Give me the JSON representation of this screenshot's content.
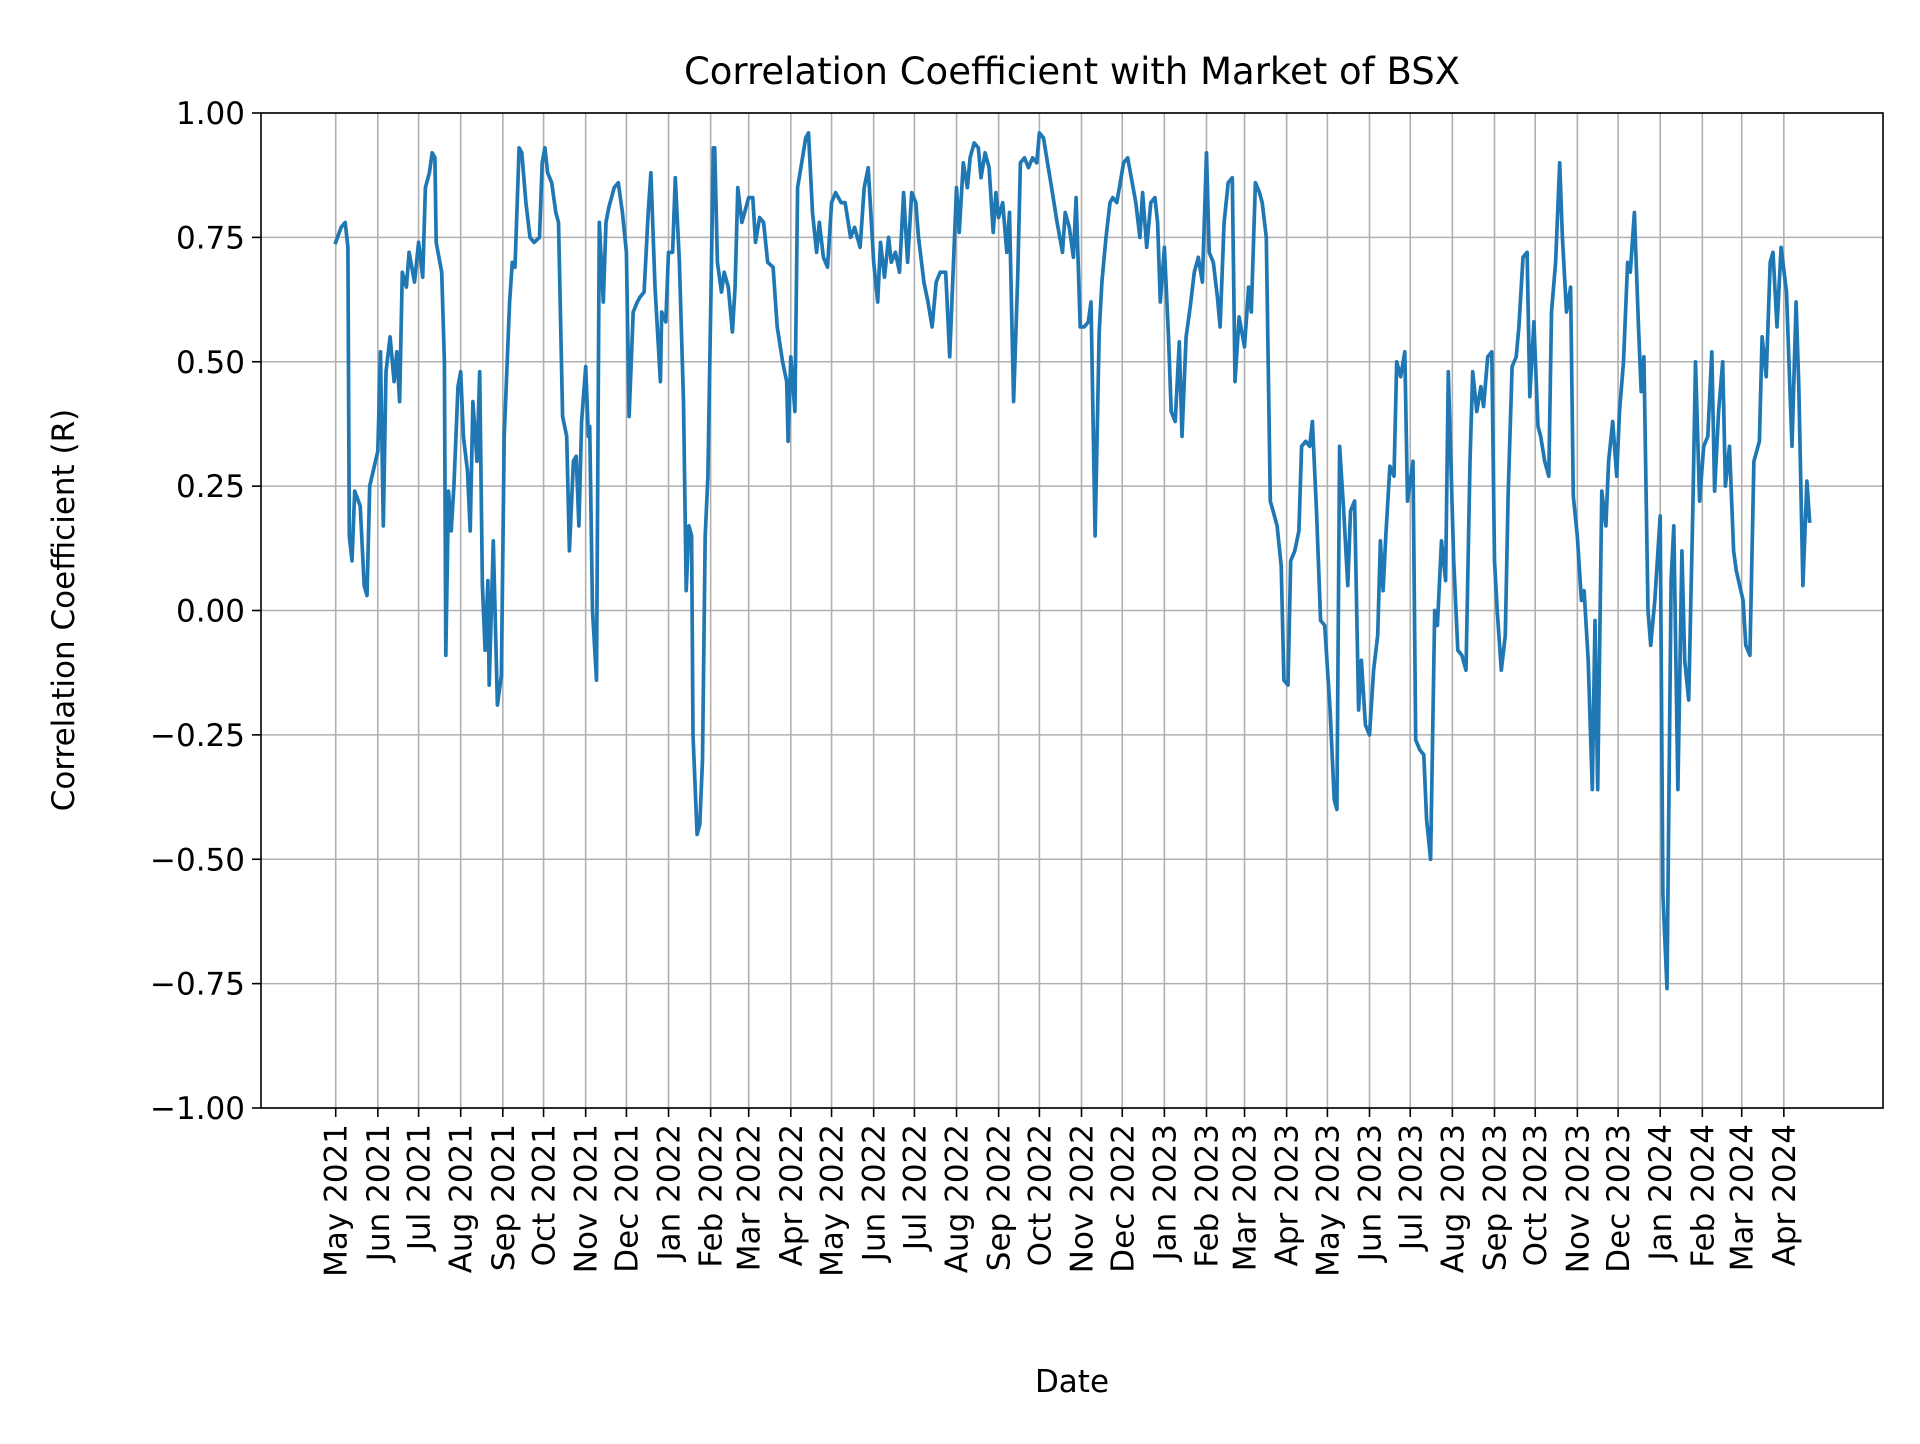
{
  "chart_data": {
    "type": "line",
    "title": "Correlation Coefficient with Market of BSX",
    "xlabel": "Date",
    "ylabel": "Correlation Coefficient (R)",
    "xlim": [
      "2021-03-07",
      "2024-06-13"
    ],
    "ylim": [
      -1.0,
      1.0
    ],
    "grid": true,
    "line_color": "#1f77b4",
    "grid_color": "#b0b0b0",
    "y_ticks": [
      -1.0,
      -0.75,
      -0.5,
      -0.25,
      0.0,
      0.25,
      0.5,
      0.75,
      1.0
    ],
    "y_tick_labels": [
      "−1.00",
      "−0.75",
      "−0.50",
      "−0.25",
      "0.00",
      "0.25",
      "0.50",
      "0.75",
      "1.00"
    ],
    "x_ticks": [
      "2021-05-01",
      "2021-06-01",
      "2021-07-01",
      "2021-08-01",
      "2021-09-01",
      "2021-10-01",
      "2021-11-01",
      "2021-12-01",
      "2022-01-01",
      "2022-02-01",
      "2022-03-01",
      "2022-04-01",
      "2022-05-01",
      "2022-06-01",
      "2022-07-01",
      "2022-08-01",
      "2022-09-01",
      "2022-10-01",
      "2022-11-01",
      "2022-12-01",
      "2023-01-01",
      "2023-02-01",
      "2023-03-01",
      "2023-04-01",
      "2023-05-01",
      "2023-06-01",
      "2023-07-01",
      "2023-08-01",
      "2023-09-01",
      "2023-10-01",
      "2023-11-01",
      "2023-12-01",
      "2024-01-01",
      "2024-02-01",
      "2024-03-01",
      "2024-04-01"
    ],
    "x_tick_labels": [
      "May 2021",
      "Jun 2021",
      "Jul 2021",
      "Aug 2021",
      "Sep 2021",
      "Oct 2021",
      "Nov 2021",
      "Dec 2021",
      "Jan 2022",
      "Feb 2022",
      "Mar 2022",
      "Apr 2022",
      "May 2022",
      "Jun 2022",
      "Jul 2022",
      "Aug 2022",
      "Sep 2022",
      "Oct 2022",
      "Nov 2022",
      "Dec 2022",
      "Jan 2023",
      "Feb 2023",
      "Mar 2023",
      "Apr 2023",
      "May 2023",
      "Jun 2023",
      "Jul 2023",
      "Aug 2023",
      "Sep 2023",
      "Oct 2023",
      "Nov 2023",
      "Dec 2023",
      "Jan 2024",
      "Feb 2024",
      "Mar 2024",
      "Apr 2024"
    ],
    "series": [
      {
        "x": [
          "2021-05-01",
          "2021-05-05",
          "2021-05-08",
          "2021-05-10",
          "2021-05-11",
          "2021-05-13",
          "2021-05-15",
          "2021-05-19",
          "2021-05-22",
          "2021-05-24",
          "2021-05-26",
          "2021-06-01",
          "2021-06-03",
          "2021-06-05",
          "2021-06-07",
          "2021-06-10",
          "2021-06-13",
          "2021-06-15",
          "2021-06-17",
          "2021-06-19",
          "2021-06-22",
          "2021-06-24",
          "2021-06-28",
          "2021-07-01",
          "2021-07-04",
          "2021-07-06",
          "2021-07-09",
          "2021-07-11",
          "2021-07-13",
          "2021-07-14",
          "2021-07-18",
          "2021-07-20",
          "2021-07-21",
          "2021-07-23",
          "2021-07-25",
          "2021-07-27",
          "2021-07-30",
          "2021-08-01",
          "2021-08-03",
          "2021-08-06",
          "2021-08-08",
          "2021-08-10",
          "2021-08-13",
          "2021-08-15",
          "2021-08-17",
          "2021-08-19",
          "2021-08-21",
          "2021-08-22",
          "2021-08-25",
          "2021-08-28",
          "2021-08-31",
          "2021-09-02",
          "2021-09-06",
          "2021-09-08",
          "2021-09-10",
          "2021-09-13",
          "2021-09-15",
          "2021-09-18",
          "2021-09-21",
          "2021-09-24",
          "2021-09-28",
          "2021-09-30",
          "2021-10-02",
          "2021-10-04",
          "2021-10-07",
          "2021-10-10",
          "2021-10-12",
          "2021-10-15",
          "2021-10-18",
          "2021-10-20",
          "2021-10-23",
          "2021-10-25",
          "2021-10-27",
          "2021-10-29",
          "2021-11-01",
          "2021-11-03",
          "2021-11-04",
          "2021-11-06",
          "2021-11-09",
          "2021-11-11",
          "2021-11-14",
          "2021-11-16",
          "2021-11-18",
          "2021-11-22",
          "2021-11-25",
          "2021-11-28",
          "2021-12-01",
          "2021-12-03",
          "2021-12-06",
          "2021-12-09",
          "2021-12-11",
          "2021-12-14",
          "2021-12-17",
          "2021-12-19",
          "2021-12-22",
          "2021-12-26",
          "2021-12-27",
          "2021-12-30",
          "2022-01-01",
          "2022-01-04",
          "2022-01-06",
          "2022-01-09",
          "2022-01-12",
          "2022-01-14",
          "2022-01-16",
          "2022-01-18",
          "2022-01-19",
          "2022-01-22",
          "2022-01-24",
          "2022-01-26",
          "2022-01-28",
          "2022-01-30",
          "2022-02-03",
          "2022-02-04",
          "2022-02-06",
          "2022-02-09",
          "2022-02-11",
          "2022-02-14",
          "2022-02-17",
          "2022-02-19",
          "2022-02-21",
          "2022-02-24",
          "2022-03-01",
          "2022-03-04",
          "2022-03-06",
          "2022-03-09",
          "2022-03-12",
          "2022-03-15",
          "2022-03-19",
          "2022-03-22",
          "2022-03-26",
          "2022-03-29",
          "2022-03-30",
          "2022-04-01",
          "2022-04-04",
          "2022-04-06",
          "2022-04-09",
          "2022-04-12",
          "2022-04-14",
          "2022-04-17",
          "2022-04-20",
          "2022-04-22",
          "2022-04-25",
          "2022-04-28",
          "2022-05-01",
          "2022-05-04",
          "2022-05-08",
          "2022-05-11",
          "2022-05-15",
          "2022-05-18",
          "2022-05-22",
          "2022-05-25",
          "2022-05-28",
          "2022-06-01",
          "2022-06-04",
          "2022-06-06",
          "2022-06-09",
          "2022-06-12",
          "2022-06-14",
          "2022-06-17",
          "2022-06-20",
          "2022-06-23",
          "2022-06-26",
          "2022-06-29",
          "2022-07-02",
          "2022-07-04",
          "2022-07-08",
          "2022-07-11",
          "2022-07-14",
          "2022-07-17",
          "2022-07-20",
          "2022-07-24",
          "2022-07-27",
          "2022-08-01",
          "2022-08-03",
          "2022-08-06",
          "2022-08-09",
          "2022-08-11",
          "2022-08-14",
          "2022-08-17",
          "2022-08-19",
          "2022-08-22",
          "2022-08-25",
          "2022-08-28",
          "2022-08-30",
          "2022-09-01",
          "2022-09-04",
          "2022-09-07",
          "2022-09-09",
          "2022-09-12",
          "2022-09-15",
          "2022-09-17",
          "2022-09-20",
          "2022-09-23",
          "2022-09-26",
          "2022-09-29",
          "2022-10-01",
          "2022-10-04",
          "2022-10-07",
          "2022-10-10",
          "2022-10-14",
          "2022-10-18",
          "2022-10-20",
          "2022-10-23",
          "2022-10-26",
          "2022-10-28",
          "2022-10-31",
          "2022-11-03",
          "2022-11-06",
          "2022-11-08",
          "2022-11-11",
          "2022-11-14",
          "2022-11-16",
          "2022-11-19",
          "2022-11-22",
          "2022-11-24",
          "2022-11-27",
          "2022-12-02",
          "2022-12-05",
          "2022-12-07",
          "2022-12-11",
          "2022-12-14",
          "2022-12-16",
          "2022-12-19",
          "2022-12-22",
          "2022-12-25",
          "2022-12-27",
          "2022-12-29",
          "2023-01-01",
          "2023-01-04",
          "2023-01-06",
          "2023-01-09",
          "2023-01-12",
          "2023-01-14",
          "2023-01-17",
          "2023-01-20",
          "2023-01-23",
          "2023-01-26",
          "2023-01-29",
          "2023-02-01",
          "2023-02-03",
          "2023-02-06",
          "2023-02-09",
          "2023-02-11",
          "2023-02-14",
          "2023-02-17",
          "2023-02-20",
          "2023-02-22",
          "2023-02-25",
          "2023-03-01",
          "2023-03-04",
          "2023-03-06",
          "2023-03-09",
          "2023-03-12",
          "2023-03-14",
          "2023-03-17",
          "2023-03-20",
          "2023-03-22",
          "2023-03-25",
          "2023-03-28",
          "2023-03-30",
          "2023-04-02",
          "2023-04-04",
          "2023-04-07",
          "2023-04-10",
          "2023-04-12",
          "2023-04-15",
          "2023-04-18",
          "2023-04-20",
          "2023-04-23",
          "2023-04-26",
          "2023-04-29",
          "2023-05-03",
          "2023-05-06",
          "2023-05-08",
          "2023-05-10",
          "2023-05-13",
          "2023-05-16",
          "2023-05-18",
          "2023-05-21",
          "2023-05-24",
          "2023-05-26",
          "2023-05-29",
          "2023-06-01",
          "2023-06-04",
          "2023-06-07",
          "2023-06-09",
          "2023-06-11",
          "2023-06-13",
          "2023-06-16",
          "2023-06-19",
          "2023-06-21",
          "2023-06-24",
          "2023-06-27",
          "2023-06-29",
          "2023-07-03",
          "2023-07-05",
          "2023-07-08",
          "2023-07-11",
          "2023-07-13",
          "2023-07-16",
          "2023-07-19",
          "2023-07-21",
          "2023-07-24",
          "2023-07-27",
          "2023-07-29",
          "2023-08-02",
          "2023-08-05",
          "2023-08-08",
          "2023-08-11",
          "2023-08-14",
          "2023-08-16",
          "2023-08-19",
          "2023-08-22",
          "2023-08-24",
          "2023-08-27",
          "2023-08-30",
          "2023-09-01",
          "2023-09-03",
          "2023-09-06",
          "2023-09-09",
          "2023-09-11",
          "2023-09-14",
          "2023-09-17",
          "2023-09-19",
          "2023-09-22",
          "2023-09-25",
          "2023-09-27",
          "2023-09-30",
          "2023-10-03",
          "2023-10-05",
          "2023-10-08",
          "2023-10-11",
          "2023-10-13",
          "2023-10-16",
          "2023-10-19",
          "2023-10-21",
          "2023-10-24",
          "2023-10-27",
          "2023-10-29",
          "2023-11-01",
          "2023-11-04",
          "2023-11-06",
          "2023-11-09",
          "2023-11-12",
          "2023-11-14",
          "2023-11-16",
          "2023-11-19",
          "2023-11-22",
          "2023-11-24",
          "2023-11-27",
          "2023-11-30",
          "2023-12-02",
          "2023-12-05",
          "2023-12-08",
          "2023-12-10",
          "2023-12-13",
          "2023-12-16",
          "2023-12-18",
          "2023-12-20",
          "2023-12-23",
          "2023-12-25",
          "2023-12-28",
          "2024-01-01",
          "2024-01-03",
          "2024-01-06",
          "2024-01-09",
          "2024-01-11",
          "2024-01-14",
          "2024-01-17",
          "2024-01-19",
          "2024-01-22",
          "2024-01-25",
          "2024-01-27",
          "2024-01-30",
          "2024-02-02",
          "2024-02-05",
          "2024-02-08",
          "2024-02-10",
          "2024-02-13",
          "2024-02-16",
          "2024-02-18",
          "2024-02-21",
          "2024-02-24",
          "2024-02-26",
          "2024-03-02",
          "2024-03-04",
          "2024-03-07",
          "2024-03-10",
          "2024-03-14",
          "2024-03-16",
          "2024-03-19",
          "2024-03-22",
          "2024-03-24",
          "2024-03-27",
          "2024-03-30",
          "2024-04-03",
          "2024-04-05",
          "2024-04-07",
          "2024-04-10",
          "2024-04-12",
          "2024-04-15",
          "2024-04-18",
          "2024-04-20"
        ],
        "y": [
          0.74,
          0.77,
          0.78,
          0.73,
          0.15,
          0.1,
          0.24,
          0.21,
          0.05,
          0.03,
          0.25,
          0.32,
          0.52,
          0.17,
          0.48,
          0.55,
          0.46,
          0.52,
          0.42,
          0.68,
          0.65,
          0.72,
          0.66,
          0.74,
          0.67,
          0.85,
          0.88,
          0.92,
          0.91,
          0.74,
          0.68,
          0.5,
          -0.09,
          0.24,
          0.16,
          0.25,
          0.45,
          0.48,
          0.35,
          0.28,
          0.16,
          0.42,
          0.3,
          0.48,
          0.05,
          -0.08,
          0.06,
          -0.15,
          0.14,
          -0.19,
          -0.13,
          0.35,
          0.62,
          0.7,
          0.69,
          0.93,
          0.92,
          0.82,
          0.75,
          0.74,
          0.75,
          0.9,
          0.93,
          0.88,
          0.86,
          0.8,
          0.78,
          0.39,
          0.35,
          0.12,
          0.3,
          0.31,
          0.17,
          0.38,
          0.49,
          0.35,
          0.37,
          0.0,
          -0.14,
          0.78,
          0.62,
          0.78,
          0.81,
          0.85,
          0.86,
          0.8,
          0.72,
          0.39,
          0.6,
          0.62,
          0.63,
          0.64,
          0.8,
          0.88,
          0.65,
          0.46,
          0.6,
          0.58,
          0.72,
          0.72,
          0.87,
          0.7,
          0.42,
          0.04,
          0.17,
          0.15,
          -0.25,
          -0.45,
          -0.43,
          -0.3,
          0.15,
          0.27,
          0.93,
          0.93,
          0.7,
          0.64,
          0.68,
          0.65,
          0.56,
          0.65,
          0.85,
          0.78,
          0.83,
          0.83,
          0.74,
          0.79,
          0.78,
          0.7,
          0.69,
          0.57,
          0.5,
          0.46,
          0.34,
          0.51,
          0.4,
          0.85,
          0.9,
          0.95,
          0.96,
          0.8,
          0.72,
          0.78,
          0.71,
          0.69,
          0.82,
          0.84,
          0.82,
          0.82,
          0.75,
          0.77,
          0.73,
          0.85,
          0.89,
          0.7,
          0.62,
          0.74,
          0.67,
          0.75,
          0.7,
          0.72,
          0.68,
          0.84,
          0.7,
          0.84,
          0.82,
          0.75,
          0.66,
          0.62,
          0.57,
          0.66,
          0.68,
          0.68,
          0.51,
          0.85,
          0.76,
          0.9,
          0.85,
          0.91,
          0.94,
          0.93,
          0.87,
          0.92,
          0.89,
          0.76,
          0.84,
          0.79,
          0.82,
          0.72,
          0.8,
          0.42,
          0.67,
          0.9,
          0.91,
          0.89,
          0.91,
          0.9,
          0.96,
          0.95,
          0.9,
          0.85,
          0.78,
          0.72,
          0.8,
          0.77,
          0.71,
          0.83,
          0.57,
          0.57,
          0.58,
          0.62,
          0.15,
          0.56,
          0.66,
          0.75,
          0.82,
          0.83,
          0.82,
          0.9,
          0.91,
          0.88,
          0.82,
          0.75,
          0.84,
          0.73,
          0.82,
          0.83,
          0.78,
          0.62,
          0.73,
          0.55,
          0.4,
          0.38,
          0.54,
          0.35,
          0.55,
          0.61,
          0.68,
          0.71,
          0.66,
          0.92,
          0.72,
          0.7,
          0.63,
          0.57,
          0.78,
          0.86,
          0.87,
          0.46,
          0.59,
          0.53,
          0.65,
          0.6,
          0.86,
          0.84,
          0.82,
          0.75,
          0.22,
          0.2,
          0.17,
          0.09,
          -0.14,
          -0.15,
          0.1,
          0.12,
          0.16,
          0.33,
          0.34,
          0.33,
          0.38,
          0.2,
          -0.02,
          -0.03,
          -0.2,
          -0.38,
          -0.4,
          0.33,
          0.2,
          0.05,
          0.2,
          0.22,
          -0.2,
          -0.1,
          -0.23,
          -0.25,
          -0.12,
          -0.05,
          0.14,
          0.04,
          0.15,
          0.29,
          0.27,
          0.5,
          0.47,
          0.52,
          0.22,
          0.3,
          -0.26,
          -0.28,
          -0.29,
          -0.42,
          -0.5,
          0.0,
          -0.03,
          0.14,
          0.06,
          0.48,
          0.1,
          -0.08,
          -0.09,
          -0.12,
          0.3,
          0.48,
          0.4,
          0.45,
          0.41,
          0.51,
          0.52,
          0.1,
          0.0,
          -0.12,
          -0.05,
          0.23,
          0.49,
          0.51,
          0.57,
          0.71,
          0.72,
          0.43,
          0.58,
          0.37,
          0.35,
          0.3,
          0.27,
          0.6,
          0.7,
          0.9,
          0.75,
          0.6,
          0.65,
          0.23,
          0.15,
          0.02,
          0.04,
          -0.1,
          -0.36,
          -0.02,
          -0.36,
          0.24,
          0.17,
          0.3,
          0.38,
          0.27,
          0.4,
          0.5,
          0.7,
          0.68,
          0.8,
          0.57,
          0.44,
          0.51,
          0.0,
          -0.07,
          0.02,
          0.19,
          -0.57,
          -0.76,
          0.06,
          0.17,
          -0.36,
          0.12,
          -0.1,
          -0.18,
          0.2,
          0.5,
          0.22,
          0.33,
          0.35,
          0.52,
          0.24,
          0.4,
          0.5,
          0.25,
          0.33,
          0.12,
          0.08,
          0.02,
          -0.07,
          -0.09,
          0.3,
          0.34,
          0.55,
          0.47,
          0.7,
          0.72,
          0.57,
          0.73,
          0.64,
          0.48,
          0.33,
          0.62,
          0.45,
          0.05,
          0.26,
          0.18
        ]
      }
    ]
  }
}
